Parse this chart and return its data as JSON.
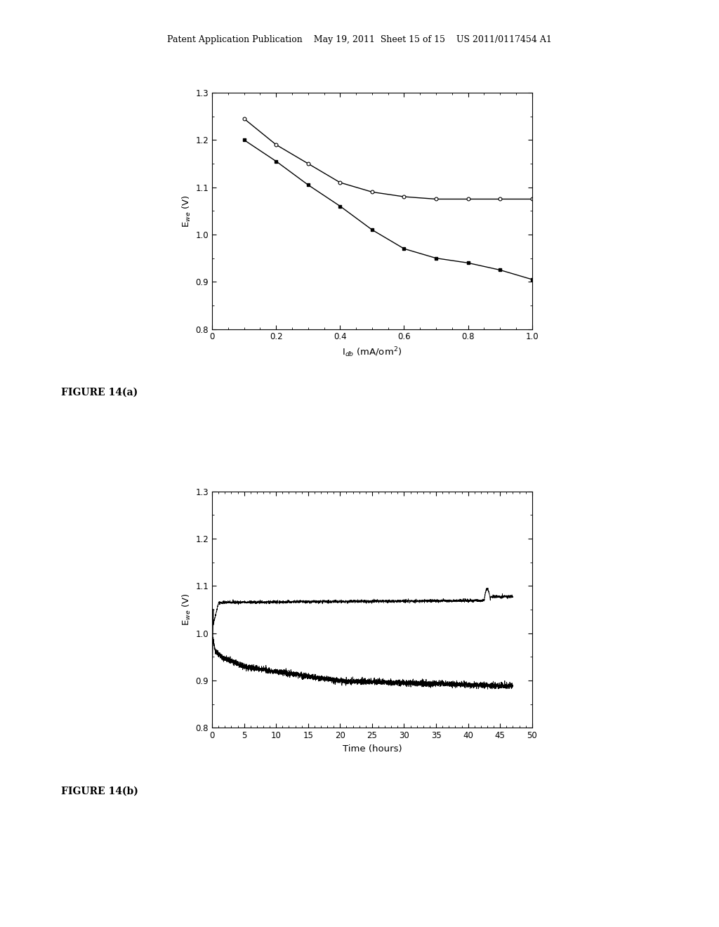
{
  "fig_width": 10.24,
  "fig_height": 13.2,
  "background_color": "#ffffff",
  "header_text": "Patent Application Publication    May 19, 2011  Sheet 15 of 15    US 2011/0117454 A1",
  "figure_label_a": "FIGURE 14(a)",
  "figure_label_b": "FIGURE 14(b)",
  "plot_a": {
    "xlabel": "I$_{db}$ (mA/om$^2$)",
    "ylabel": "E$_{we}$ (V)",
    "xlim": [
      0,
      1.0
    ],
    "ylim": [
      0.8,
      1.3
    ],
    "xticks": [
      0,
      0.2,
      0.4,
      0.6,
      0.8,
      1.0
    ],
    "yticks": [
      0.8,
      0.9,
      1.0,
      1.1,
      1.2,
      1.3
    ],
    "xticklabels": [
      "0",
      "0.2",
      "0.4",
      "0.6",
      "0.8",
      "1.0"
    ],
    "yticklabels": [
      "0.8",
      "0.9",
      "1.0",
      "1.1",
      "1.2",
      "1.3"
    ],
    "line1_x": [
      0.1,
      0.2,
      0.3,
      0.4,
      0.5,
      0.6,
      0.7,
      0.8,
      0.9,
      1.0
    ],
    "line1_y": [
      1.245,
      1.19,
      1.15,
      1.11,
      1.09,
      1.08,
      1.075,
      1.075,
      1.075,
      1.075
    ],
    "line2_x": [
      0.1,
      0.2,
      0.3,
      0.4,
      0.5,
      0.6,
      0.7,
      0.8,
      0.9,
      1.0
    ],
    "line2_y": [
      1.2,
      1.155,
      1.105,
      1.06,
      1.01,
      0.97,
      0.95,
      0.94,
      0.925,
      0.905
    ]
  },
  "plot_b": {
    "xlabel": "Time (hours)",
    "ylabel": "E$_{we}$ (V)",
    "xlim": [
      0,
      50
    ],
    "ylim": [
      0.8,
      1.3
    ],
    "xticks": [
      0,
      5,
      10,
      15,
      20,
      25,
      30,
      35,
      40,
      45,
      50
    ],
    "yticks": [
      0.8,
      0.9,
      1.0,
      1.1,
      1.2,
      1.3
    ],
    "xticklabels": [
      "0",
      "5",
      "10",
      "15",
      "20",
      "25",
      "30",
      "35",
      "40",
      "45",
      "50"
    ],
    "yticklabels": [
      "0.8",
      "0.9",
      "1.0",
      "1.1",
      "1.2",
      "1.3"
    ]
  }
}
